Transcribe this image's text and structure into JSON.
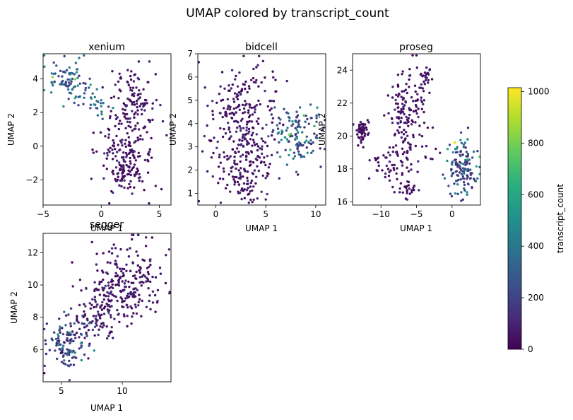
{
  "chart_data": {
    "suptitle": "UMAP colored by transcript_count",
    "type": "scatter",
    "colorbar": {
      "label": "transcript_count",
      "range": [
        0,
        1015
      ],
      "ticks": [
        0,
        200,
        400,
        600,
        800,
        1000
      ],
      "colormap": "viridis"
    },
    "panels": [
      {
        "id": "xenium",
        "title": "xenium",
        "xlabel": "UMAP 1",
        "ylabel": "UMAP 2",
        "xlim": [
          -5,
          6
        ],
        "ylim": [
          -3.5,
          5.5
        ],
        "xticks": [
          -5,
          0,
          5
        ],
        "yticks": [
          -2,
          0,
          2,
          4
        ],
        "clusters": [
          {
            "cx": -2.9,
            "cy": 3.9,
            "sx": 0.95,
            "sy": 0.55,
            "n": 80,
            "rot": -0.25,
            "cmean": 260,
            "cspread": 180
          },
          {
            "cx": -0.6,
            "cy": 2.6,
            "sx": 0.8,
            "sy": 0.35,
            "n": 30,
            "rot": -0.4,
            "cmean": 330,
            "cspread": 200
          },
          {
            "cx": 2.6,
            "cy": 3.1,
            "sx": 0.9,
            "sy": 0.9,
            "n": 80,
            "rot": 0,
            "cmean": 60,
            "cspread": 60
          },
          {
            "cx": 2.3,
            "cy": 0.2,
            "sx": 1.2,
            "sy": 1.3,
            "n": 170,
            "rot": 0,
            "cmean": 50,
            "cspread": 50
          },
          {
            "cx": 2.2,
            "cy": -1.8,
            "sx": 0.8,
            "sy": 0.6,
            "n": 50,
            "rot": 0,
            "cmean": 40,
            "cspread": 40
          }
        ]
      },
      {
        "id": "bidcell",
        "title": "bidcell",
        "xlabel": "UMAP 1",
        "ylabel": "UMAP 2",
        "xlim": [
          -1.8,
          11
        ],
        "ylim": [
          0.5,
          7
        ],
        "xticks": [
          0,
          5,
          10
        ],
        "yticks": [
          1,
          2,
          3,
          4,
          5,
          6,
          7
        ],
        "clusters": [
          {
            "cx": 2.5,
            "cy": 4.6,
            "sx": 1.7,
            "sy": 1.0,
            "n": 180,
            "rot": 0,
            "cmean": 55,
            "cspread": 50
          },
          {
            "cx": 3.0,
            "cy": 2.4,
            "sx": 1.6,
            "sy": 0.8,
            "n": 150,
            "rot": 0,
            "cmean": 55,
            "cspread": 50
          },
          {
            "cx": 3.0,
            "cy": 1.2,
            "sx": 0.8,
            "sy": 0.3,
            "n": 25,
            "rot": 0,
            "cmean": 45,
            "cspread": 40
          },
          {
            "cx": 8.3,
            "cy": 3.6,
            "sx": 1.3,
            "sy": 0.7,
            "n": 130,
            "rot": 0,
            "cmean": 230,
            "cspread": 200
          }
        ]
      },
      {
        "id": "proseg",
        "title": "proseg",
        "xlabel": "UMAP 1",
        "ylabel": "UMAP 2",
        "xlim": [
          -14,
          4
        ],
        "ylim": [
          15.8,
          25
        ],
        "xticks": [
          -10,
          -5,
          0
        ],
        "yticks": [
          16,
          18,
          20,
          22,
          24
        ],
        "clusters": [
          {
            "cx": -12.6,
            "cy": 20.3,
            "sx": 0.45,
            "sy": 0.4,
            "n": 55,
            "rot": 0,
            "cmean": 40,
            "cspread": 40
          },
          {
            "cx": -6.3,
            "cy": 21.6,
            "sx": 1.4,
            "sy": 1.3,
            "n": 130,
            "rot": 0,
            "cmean": 50,
            "cspread": 45
          },
          {
            "cx": -3.9,
            "cy": 23.6,
            "sx": 0.5,
            "sy": 0.45,
            "n": 30,
            "rot": 0,
            "cmean": 50,
            "cspread": 40
          },
          {
            "cx": -8.0,
            "cy": 18.5,
            "sx": 1.8,
            "sy": 0.7,
            "n": 70,
            "rot": 0,
            "cmean": 50,
            "cspread": 45
          },
          {
            "cx": -6.0,
            "cy": 16.8,
            "sx": 0.7,
            "sy": 0.4,
            "n": 25,
            "rot": 0,
            "cmean": 50,
            "cspread": 40
          },
          {
            "cx": 1.6,
            "cy": 18.0,
            "sx": 1.1,
            "sy": 0.9,
            "n": 130,
            "rot": 0,
            "cmean": 240,
            "cspread": 210
          }
        ],
        "highlight": [
          {
            "x": 0.4,
            "y": 19.6,
            "c": 990
          }
        ]
      },
      {
        "id": "segger",
        "title": "segger",
        "xlabel": "UMAP 1",
        "ylabel": "UMAP 2",
        "xlim": [
          3.5,
          14
        ],
        "ylim": [
          4,
          13.2
        ],
        "xticks": [
          5,
          10
        ],
        "yticks": [
          6,
          8,
          10,
          12
        ],
        "clusters": [
          {
            "cx": 10.4,
            "cy": 10.0,
            "sx": 1.6,
            "sy": 1.3,
            "n": 230,
            "rot": 0,
            "cmean": 55,
            "cspread": 50
          },
          {
            "cx": 7.6,
            "cy": 8.1,
            "sx": 1.4,
            "sy": 0.9,
            "n": 110,
            "rot": 0.5,
            "cmean": 80,
            "cspread": 70
          },
          {
            "cx": 5.3,
            "cy": 6.2,
            "sx": 0.85,
            "sy": 0.85,
            "n": 110,
            "rot": 0,
            "cmean": 200,
            "cspread": 190
          }
        ]
      }
    ]
  }
}
